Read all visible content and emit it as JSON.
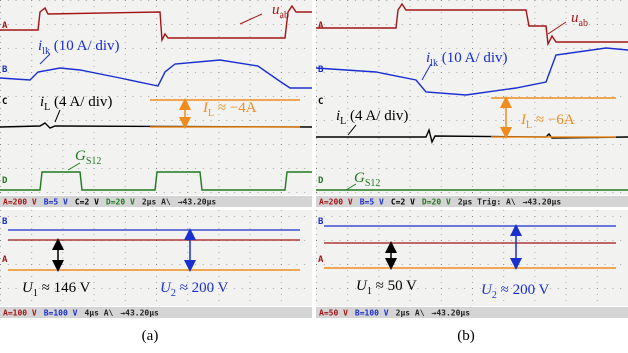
{
  "panels": [
    {
      "label": "(a)",
      "top": {
        "markers": [
          "A",
          "B",
          "C",
          "D"
        ],
        "annotations": [
          {
            "main": "u",
            "sub": "ab",
            "rest": ""
          },
          {
            "main": "i",
            "sub": "lk",
            "rest": " (10 A/ div)"
          },
          {
            "main": "i",
            "sub": "L",
            "rest": " (4 A/ div)"
          },
          {
            "main": "I",
            "sub": "L",
            "rest": " ≈ −4A"
          },
          {
            "main": "G",
            "sub": "S12",
            "rest": ""
          }
        ],
        "status": [
          "A=200 V",
          "B=5 V",
          "C=2 V",
          "D=20 V",
          "2µs A\\",
          "→43.20µs"
        ]
      },
      "bottom": {
        "markers": [
          "B",
          "A"
        ],
        "annotations": [
          {
            "main": "U",
            "sub": "1",
            "rest": " ≈ 146 V"
          },
          {
            "main": "U",
            "sub": "2",
            "rest": " ≈ 200 V"
          }
        ],
        "status": [
          "A=100 V",
          "B=100 V",
          "4µs A\\",
          "→43.20µs"
        ]
      }
    },
    {
      "label": "(b)",
      "top": {
        "markers": [
          "A",
          "B",
          "C",
          "D"
        ],
        "annotations": [
          {
            "main": "u",
            "sub": "ab",
            "rest": ""
          },
          {
            "main": "i",
            "sub": "lk",
            "rest": " (10 A/ div)"
          },
          {
            "main": "i",
            "sub": "L",
            "rest": " (4 A/ div)"
          },
          {
            "main": "I",
            "sub": "L",
            "rest": " ≈ −6A"
          },
          {
            "main": "G",
            "sub": "S12",
            "rest": ""
          }
        ],
        "status": [
          "A=200 V",
          "B=5 V",
          "C=2 V",
          "D=20 V",
          "2µs Trig: A\\",
          "→43.20µs"
        ]
      },
      "bottom": {
        "markers": [
          "B",
          "A"
        ],
        "annotations": [
          {
            "main": "U",
            "sub": "1",
            "rest": " ≈ 50 V"
          },
          {
            "main": "U",
            "sub": "2",
            "rest": " ≈ 200 V"
          }
        ],
        "status": [
          "A=50 V",
          "B=100 V",
          "2µs A\\",
          "→43.20µs"
        ]
      }
    }
  ]
}
